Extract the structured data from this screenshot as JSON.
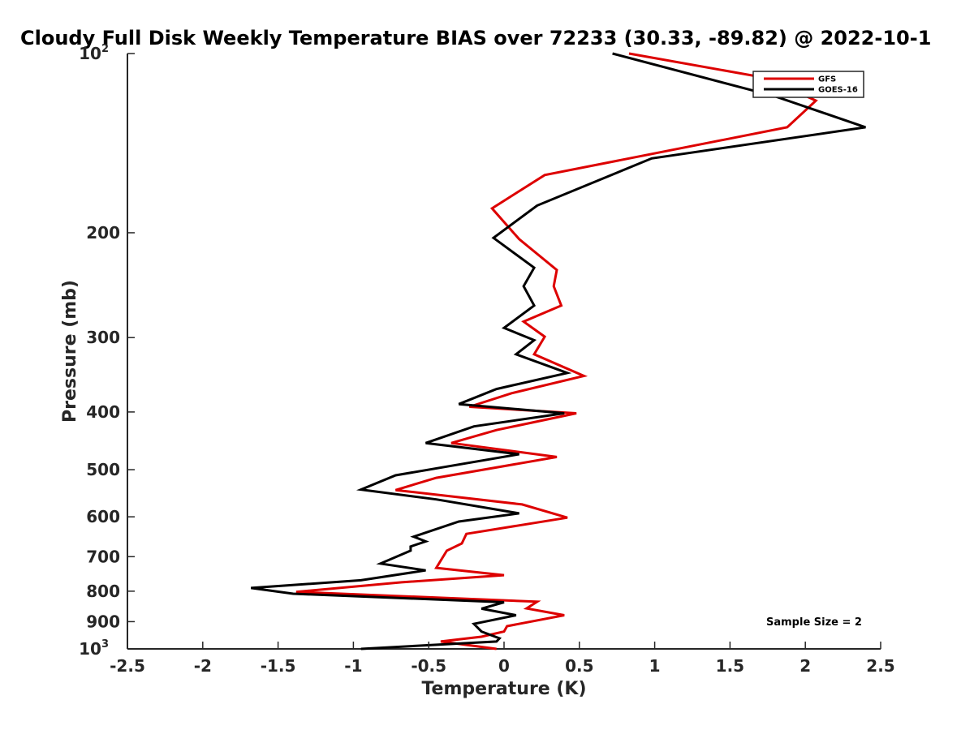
{
  "chart_data": {
    "type": "line",
    "title": "Cloudy Full Disk Weekly Temperature BIAS over 72233 (30.33, -89.82) @ 2022-10-1",
    "xlabel": "Temperature (K)",
    "ylabel": "Pressure (mb)",
    "xlim": [
      -2.5,
      2.5
    ],
    "ylim": [
      1000,
      100
    ],
    "y_scale": "log",
    "y_reversed": true,
    "x_ticks": [
      "-2.5",
      "-2",
      "-1.5",
      "-1",
      "-0.5",
      "0",
      "0.5",
      "1",
      "1.5",
      "2",
      "2.5"
    ],
    "y_ticks": [
      {
        "value": 100,
        "label": "10",
        "sup": "2"
      },
      {
        "value": 200,
        "label": "200",
        "sup": ""
      },
      {
        "value": 300,
        "label": "300",
        "sup": ""
      },
      {
        "value": 400,
        "label": "400",
        "sup": ""
      },
      {
        "value": 500,
        "label": "500",
        "sup": ""
      },
      {
        "value": 600,
        "label": "600",
        "sup": ""
      },
      {
        "value": 700,
        "label": "700",
        "sup": ""
      },
      {
        "value": 800,
        "label": "800",
        "sup": ""
      },
      {
        "value": 900,
        "label": "900",
        "sup": ""
      },
      {
        "value": 1000,
        "label": "10",
        "sup": "3"
      }
    ],
    "grid": false,
    "legend_position": "top-right",
    "series": [
      {
        "name": "GFS",
        "color": "#dd0000",
        "points": [
          [
            0.83,
            100
          ],
          [
            1.75,
            110
          ],
          [
            2.07,
            120
          ],
          [
            1.88,
            133
          ],
          [
            0.27,
            160
          ],
          [
            -0.08,
            182
          ],
          [
            0.1,
            205
          ],
          [
            0.35,
            231
          ],
          [
            0.33,
            246
          ],
          [
            0.38,
            265
          ],
          [
            0.13,
            282
          ],
          [
            0.27,
            299
          ],
          [
            0.2,
            320
          ],
          [
            0.53,
            348
          ],
          [
            0.05,
            372
          ],
          [
            -0.23,
            392
          ],
          [
            0.48,
            402
          ],
          [
            -0.05,
            429
          ],
          [
            -0.35,
            451
          ],
          [
            0.35,
            476
          ],
          [
            -0.45,
            516
          ],
          [
            -0.72,
            541
          ],
          [
            0.12,
            572
          ],
          [
            0.42,
            602
          ],
          [
            -0.25,
            641
          ],
          [
            -0.28,
            665
          ],
          [
            -0.38,
            684
          ],
          [
            -0.45,
            731
          ],
          [
            0.0,
            752
          ],
          [
            -0.68,
            773
          ],
          [
            -1.38,
            802
          ],
          [
            0.22,
            833
          ],
          [
            0.15,
            855
          ],
          [
            0.4,
            878
          ],
          [
            0.02,
            916
          ],
          [
            0.0,
            935
          ],
          [
            -0.15,
            954
          ],
          [
            -0.42,
            972
          ],
          [
            -0.05,
            1000
          ]
        ]
      },
      {
        "name": "GOES-16",
        "color": "#000000",
        "points": [
          [
            0.72,
            100
          ],
          [
            1.8,
            118
          ],
          [
            2.4,
            133
          ],
          [
            0.98,
            150
          ],
          [
            0.22,
            180
          ],
          [
            -0.07,
            204
          ],
          [
            0.2,
            229
          ],
          [
            0.13,
            246
          ],
          [
            0.2,
            265
          ],
          [
            0.0,
            289
          ],
          [
            0.2,
            303
          ],
          [
            0.08,
            320
          ],
          [
            0.42,
            344
          ],
          [
            -0.05,
            366
          ],
          [
            -0.3,
            388
          ],
          [
            0.4,
            402
          ],
          [
            -0.2,
            423
          ],
          [
            -0.52,
            451
          ],
          [
            0.1,
            471
          ],
          [
            -0.72,
            511
          ],
          [
            -0.95,
            540
          ],
          [
            -0.45,
            561
          ],
          [
            0.1,
            592
          ],
          [
            -0.3,
            611
          ],
          [
            -0.6,
            648
          ],
          [
            -0.52,
            660
          ],
          [
            -0.62,
            673
          ],
          [
            -0.62,
            684
          ],
          [
            -0.82,
            719
          ],
          [
            -0.52,
            738
          ],
          [
            -0.95,
            767
          ],
          [
            -1.68,
            790
          ],
          [
            -1.4,
            808
          ],
          [
            0.0,
            835
          ],
          [
            -0.15,
            856
          ],
          [
            0.08,
            878
          ],
          [
            -0.2,
            908
          ],
          [
            -0.15,
            935
          ],
          [
            -0.03,
            960
          ],
          [
            -0.05,
            972
          ],
          [
            -0.95,
            1000
          ]
        ]
      }
    ],
    "annotation": "Sample Size = 2"
  }
}
